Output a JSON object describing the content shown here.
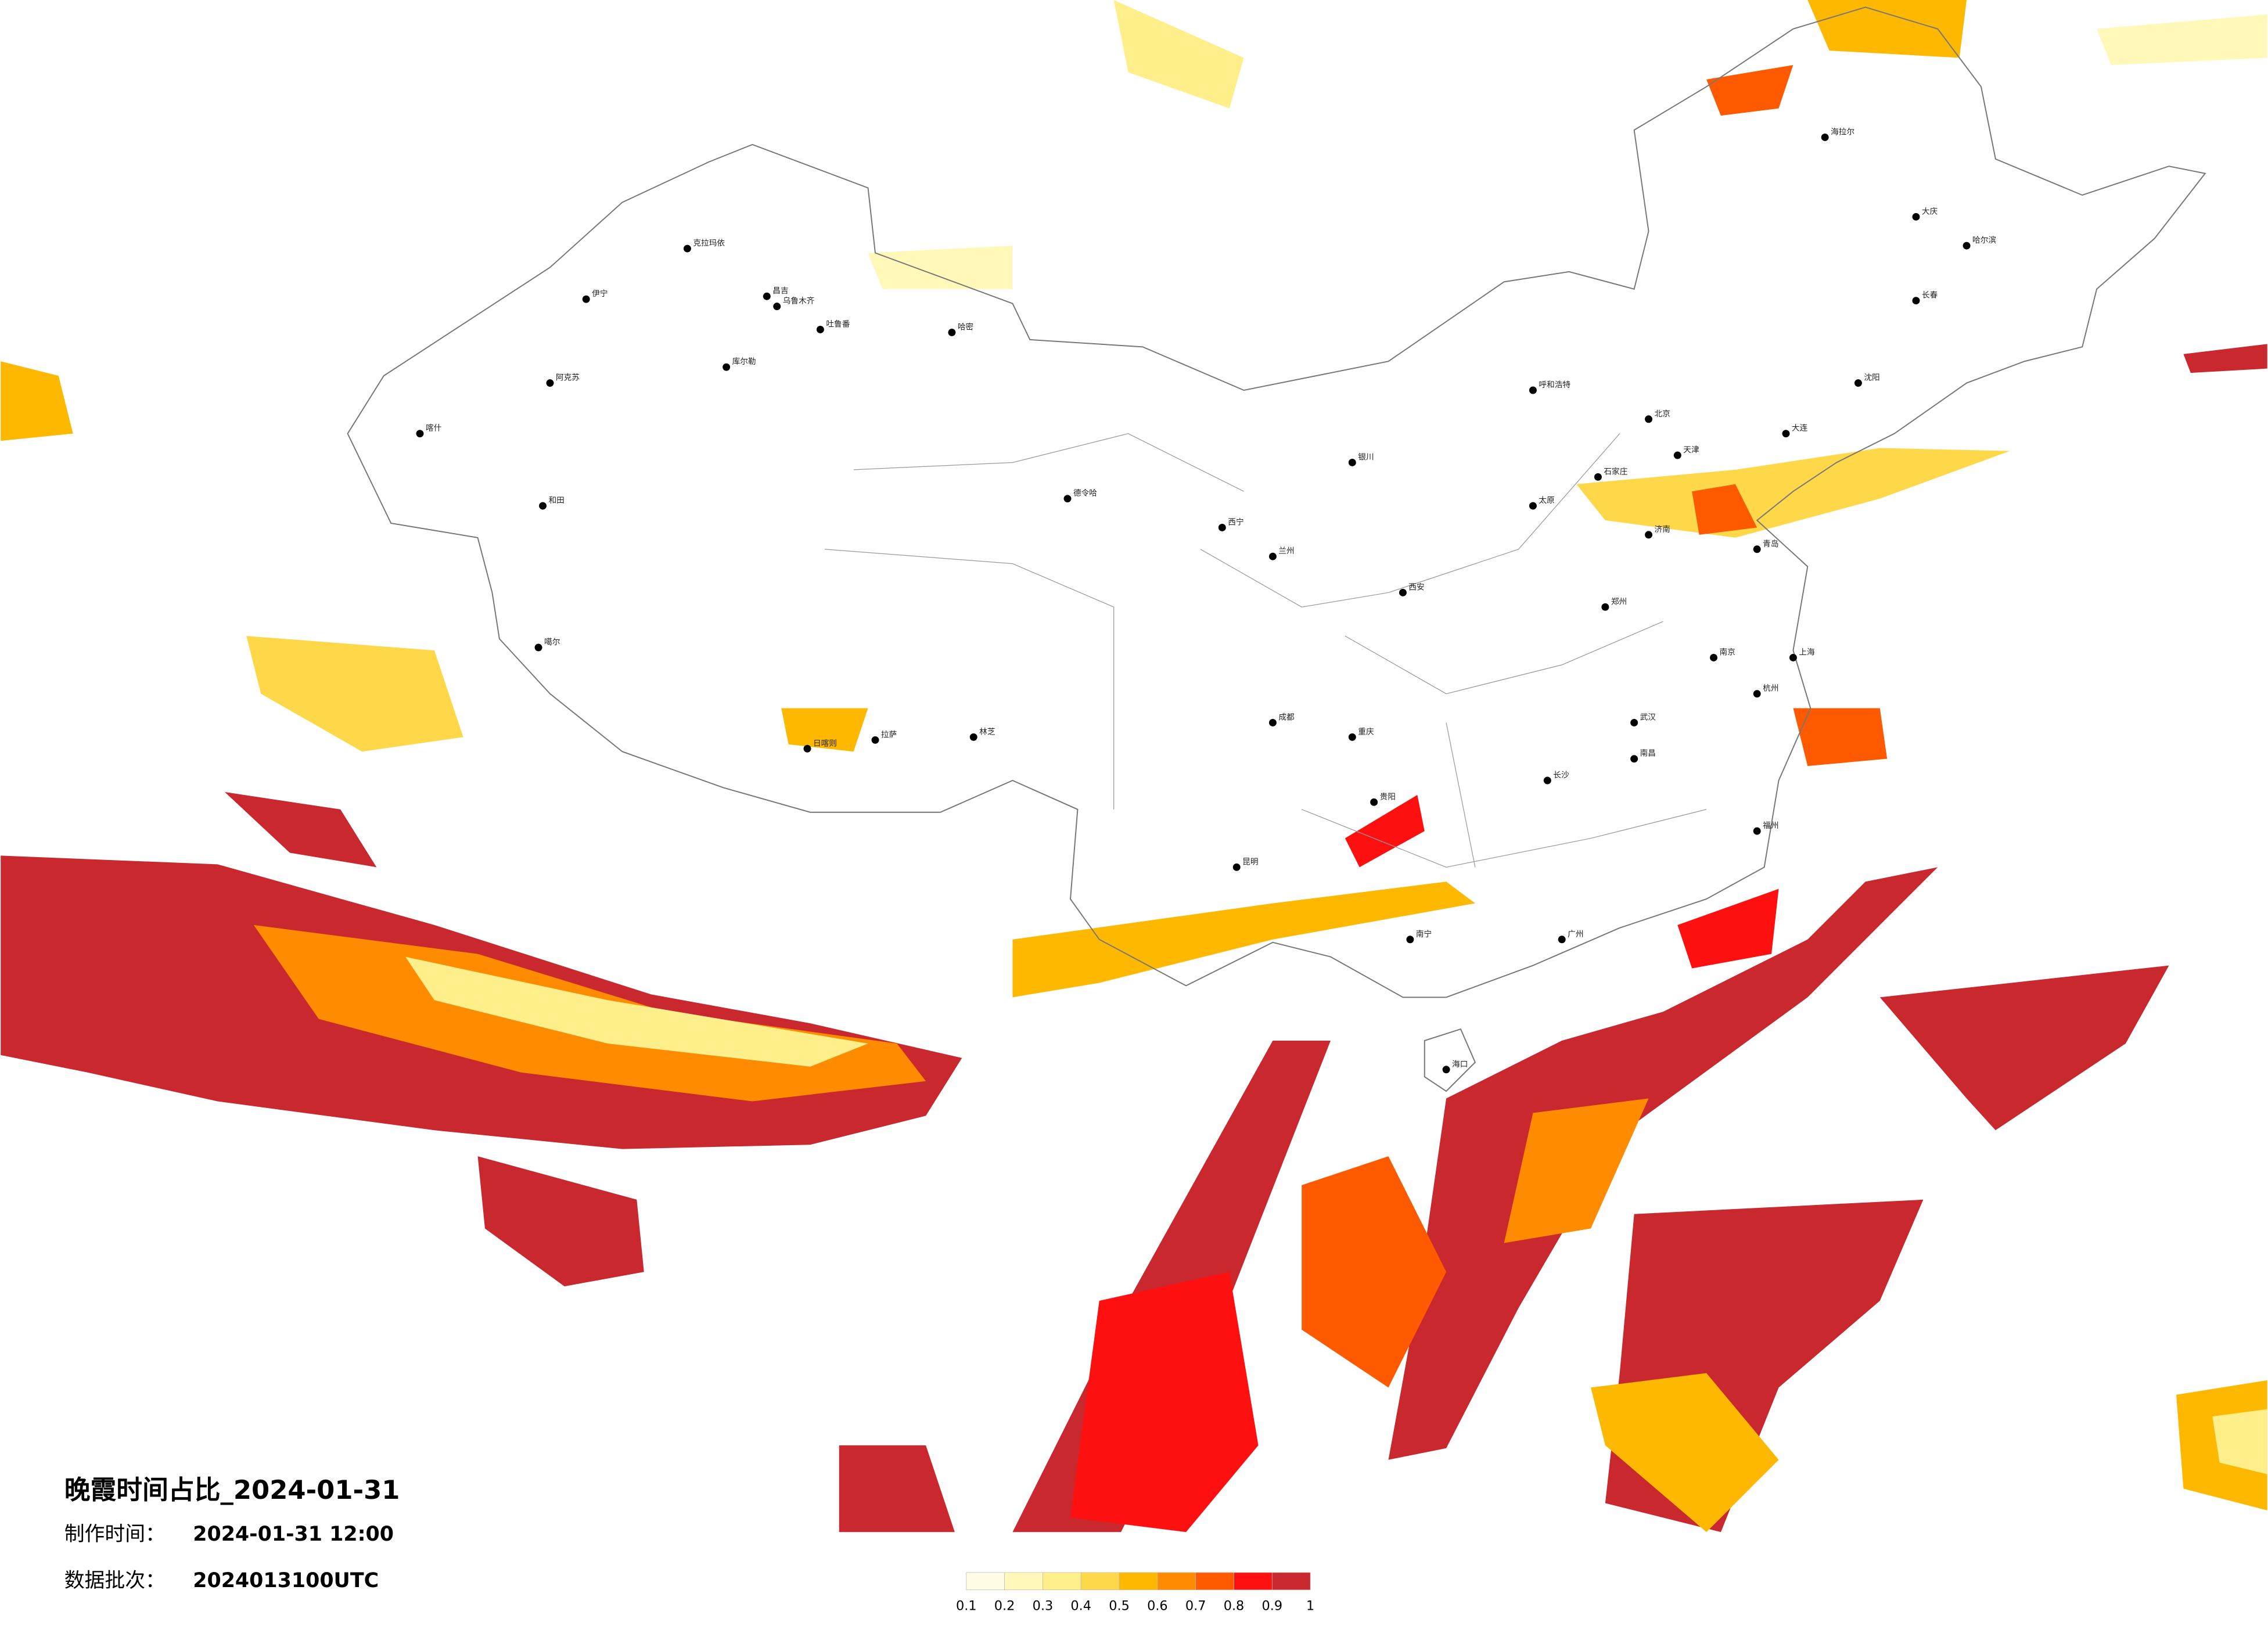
{
  "title": "晚霞时间占比_2024-01-31",
  "make_time_label": "制作时间：",
  "make_time": "2024-01-31 12:00",
  "batch_label": "数据批次：",
  "batch": "2024013100UTC",
  "colorbar": {
    "ticks": [
      0.1,
      0.2,
      0.3,
      0.4,
      0.5,
      0.6,
      0.7,
      0.8,
      0.9,
      1
    ],
    "colors": [
      "#fffce6",
      "#fff8b8",
      "#ffef8a",
      "#ffd84a",
      "#ffb800",
      "#ff8c00",
      "#ff5a00",
      "#ff1010",
      "#c8282e"
    ]
  },
  "cities": [
    "克拉玛依",
    "伊宁",
    "昌吉",
    "乌鲁木齐",
    "吐鲁番",
    "哈密",
    "库尔勒",
    "阿克苏",
    "喀什",
    "和田",
    "噶尔",
    "日喀则",
    "拉萨",
    "林芝",
    "德令哈",
    "海拉尔",
    "哈尔滨",
    "长春",
    "沈阳",
    "北京",
    "天津",
    "石家庄",
    "太原",
    "郑州",
    "西安",
    "武汉",
    "长沙",
    "南昌",
    "上海",
    "杭州",
    "南京",
    "福州",
    "广州",
    "南宁",
    "贵阳",
    "昆明",
    "成都",
    "重庆",
    "兰州",
    "西宁",
    "银川",
    "呼和浩特",
    "海口",
    "大庆",
    "济南",
    "青岛",
    "大连"
  ]
}
